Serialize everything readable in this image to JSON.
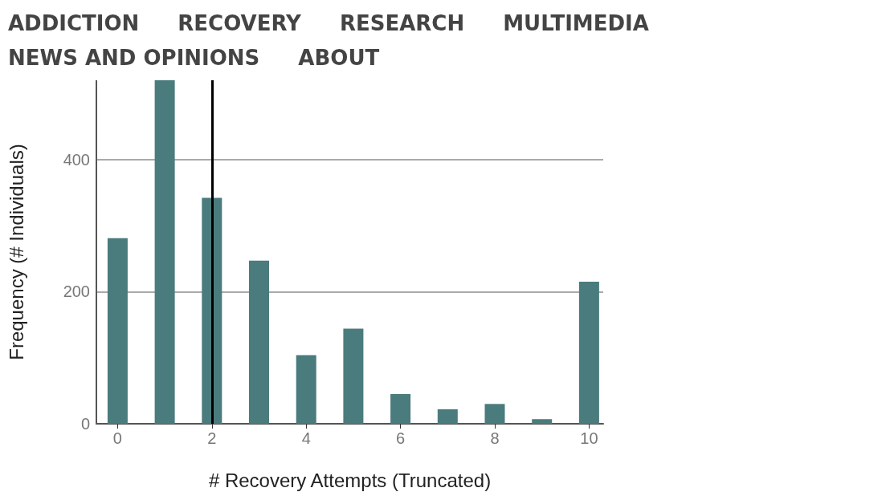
{
  "chart_data": {
    "type": "bar",
    "xlabel": "# Recovery Attempts (Truncated)",
    "ylabel": "Frequency (# Individuals)",
    "x": [
      0,
      1,
      2,
      3,
      4,
      5,
      6,
      7,
      8,
      9,
      10
    ],
    "values": [
      281,
      520,
      342,
      247,
      104,
      144,
      45,
      22,
      30,
      7,
      215
    ],
    "color": "#4a7b7d",
    "xlim": [
      -0.45,
      10.3
    ],
    "xticks": [
      0,
      2,
      4,
      6,
      8,
      10
    ],
    "ylim": [
      0,
      520
    ],
    "yticks": [
      0,
      200,
      400
    ],
    "grid": "y",
    "ref_lines": [
      {
        "axis": "x",
        "value": 2,
        "color": "#000000"
      }
    ],
    "annotations": [
      "ADDICTION",
      "RECOVERY",
      "RESEARCH",
      "MULTIMEDIA",
      "NEWS AND OPINIONS",
      "ABOUT"
    ]
  }
}
